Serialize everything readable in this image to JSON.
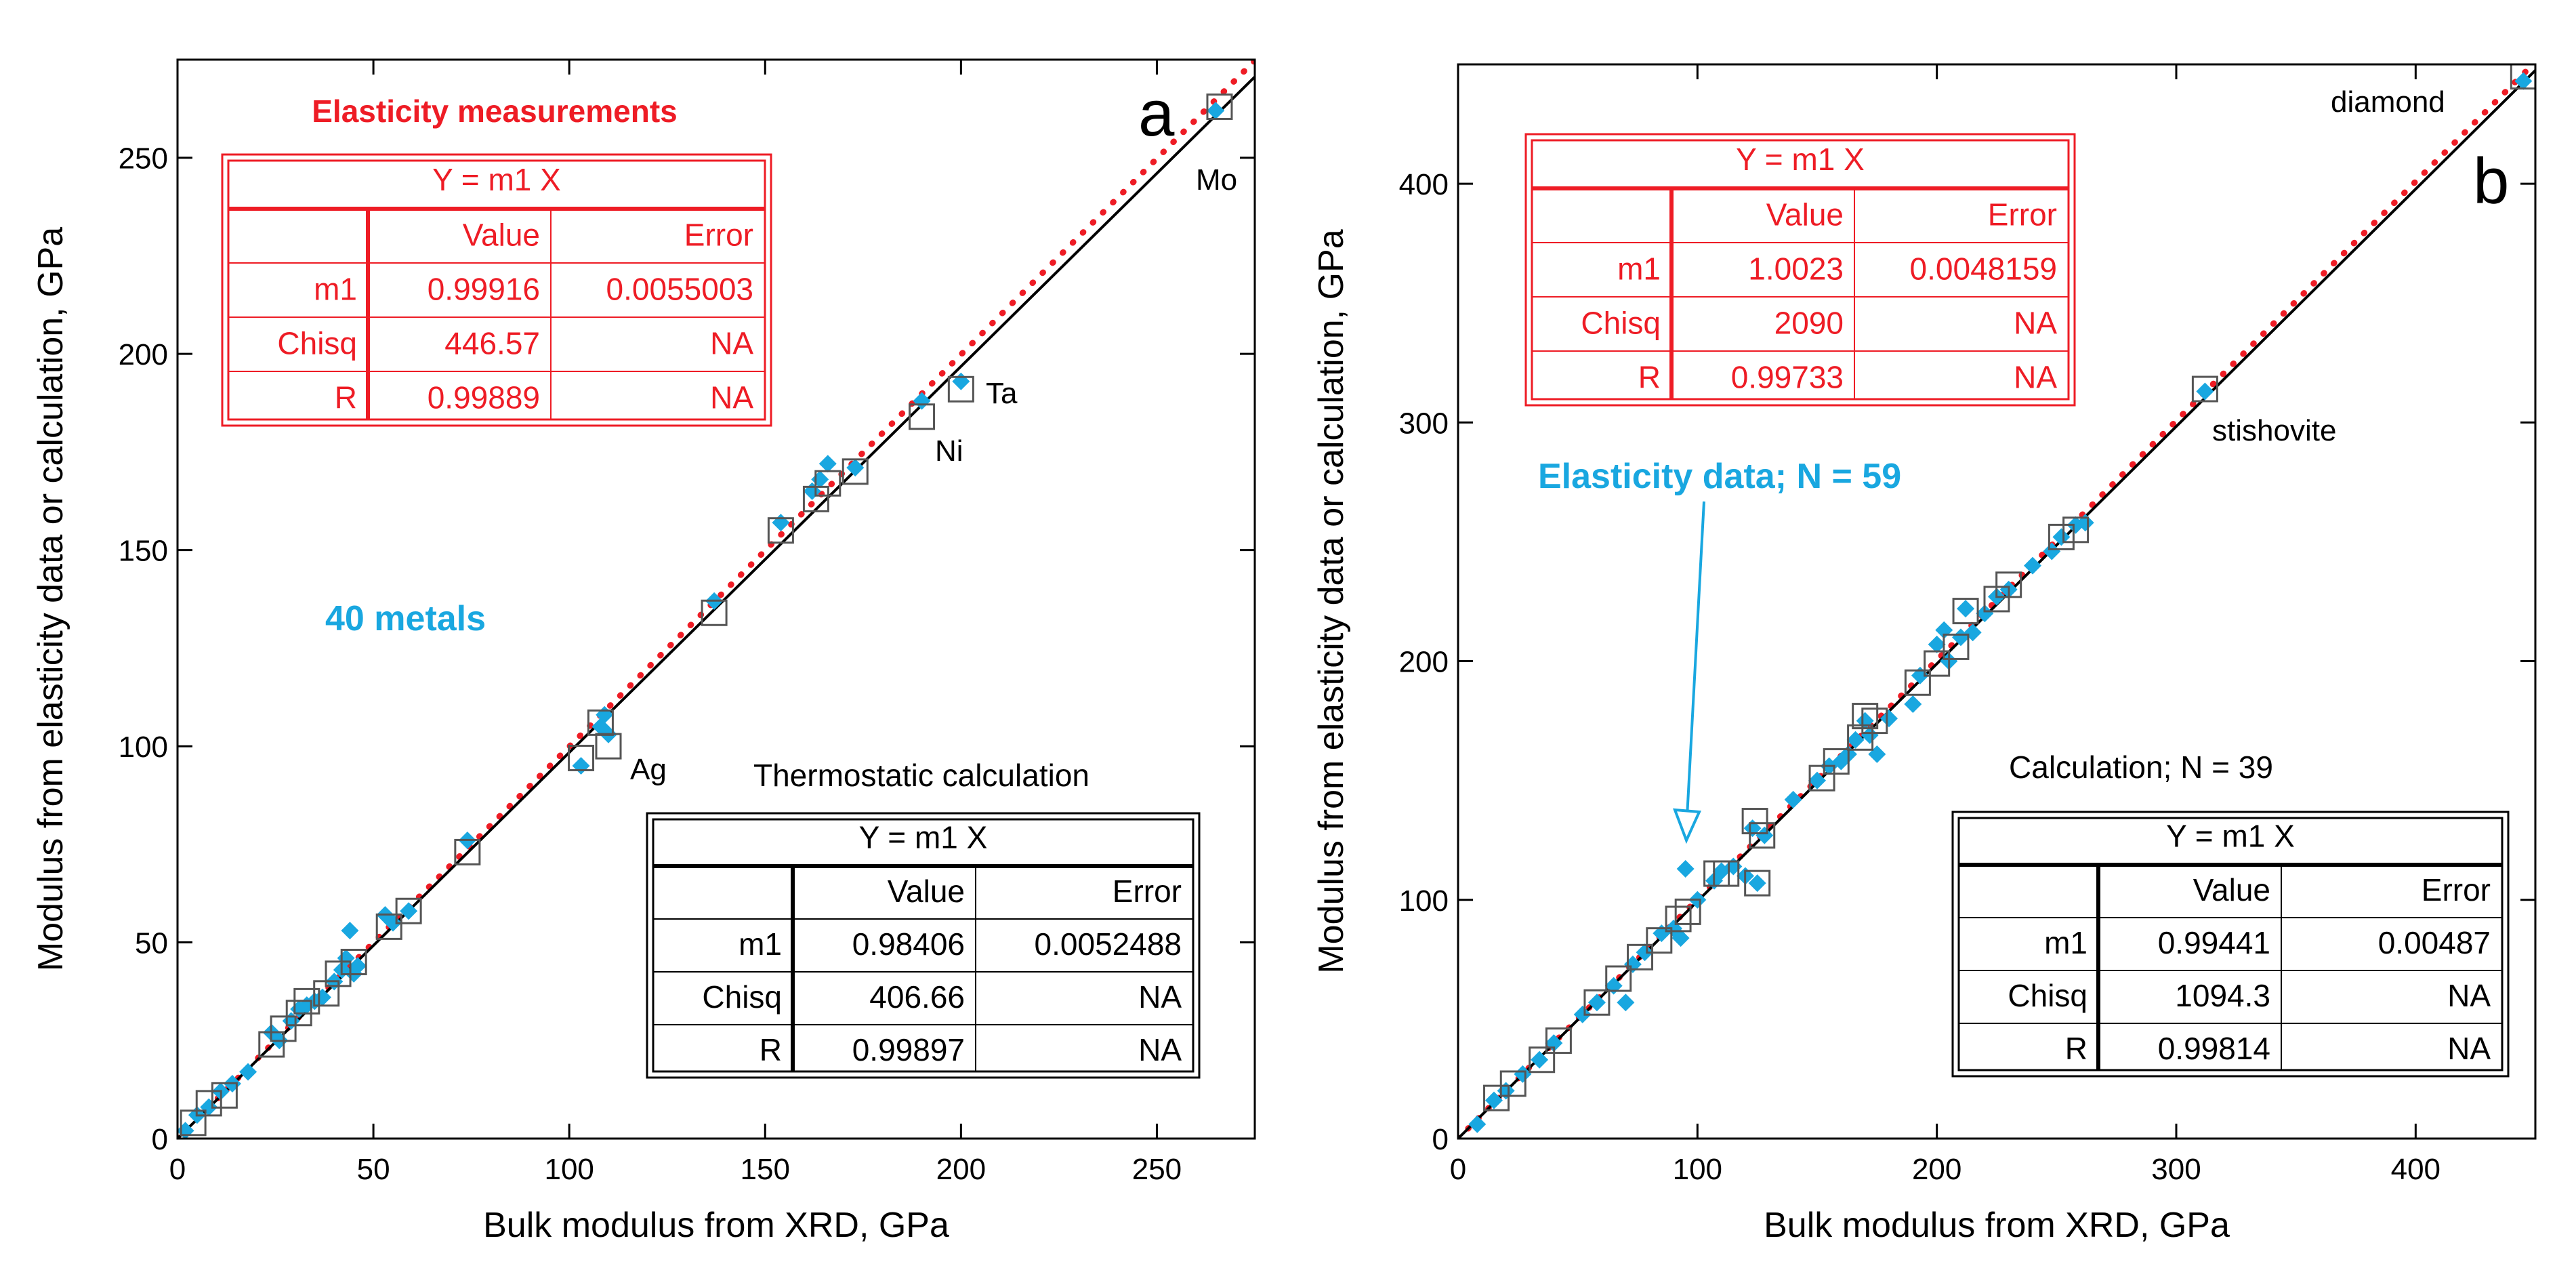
{
  "chart_data": [
    {
      "type": "scatter",
      "panel_letter": "a",
      "xlabel": "Bulk modulus from XRD, GPa",
      "ylabel": "Modulus from elasticity data or calculation, GPa",
      "xlim": [
        0,
        275
      ],
      "ylim": [
        0,
        275
      ],
      "xticks": [
        0,
        50,
        100,
        150,
        200,
        250
      ],
      "yticks": [
        0,
        50,
        100,
        150,
        200,
        250
      ],
      "legend_position": "top-left / bottom-right tables",
      "series": [
        {
          "name": "Elasticity measurements",
          "marker": "diamond",
          "color": "#19a7e0",
          "points": [
            [
              2,
              2
            ],
            [
              5,
              6
            ],
            [
              8,
              8
            ],
            [
              11,
              12
            ],
            [
              14,
              14
            ],
            [
              18,
              17
            ],
            [
              24,
              27
            ],
            [
              26,
              25
            ],
            [
              29,
              30
            ],
            [
              31,
              33
            ],
            [
              33,
              34
            ],
            [
              35,
              35
            ],
            [
              37,
              36
            ],
            [
              40,
              40
            ],
            [
              42,
              43
            ],
            [
              43,
              46
            ],
            [
              44,
              53
            ],
            [
              45,
              42
            ],
            [
              46,
              44
            ],
            [
              53,
              57
            ],
            [
              55,
              55
            ],
            [
              59,
              58
            ],
            [
              74,
              76
            ],
            [
              103,
              95
            ],
            [
              108,
              105
            ],
            [
              109,
              108
            ],
            [
              110,
              103
            ],
            [
              137,
              137
            ],
            [
              154,
              157
            ],
            [
              162,
              165
            ],
            [
              164,
              168
            ],
            [
              166,
              172
            ],
            [
              173,
              171
            ],
            [
              190,
              188
            ],
            [
              200,
              193
            ],
            [
              265,
              262
            ]
          ]
        },
        {
          "name": "Thermostatic calculation",
          "marker": "square",
          "color": "#555555",
          "points": [
            [
              4,
              4
            ],
            [
              8,
              9
            ],
            [
              12,
              11
            ],
            [
              24,
              24
            ],
            [
              27,
              28
            ],
            [
              31,
              32
            ],
            [
              33,
              35
            ],
            [
              38,
              37
            ],
            [
              41,
              42
            ],
            [
              45,
              45
            ],
            [
              54,
              54
            ],
            [
              59,
              58
            ],
            [
              74,
              73
            ],
            [
              103,
              97
            ],
            [
              108,
              106
            ],
            [
              110,
              100
            ],
            [
              137,
              134
            ],
            [
              154,
              155
            ],
            [
              163,
              163
            ],
            [
              166,
              167
            ],
            [
              173,
              170
            ],
            [
              190,
              184
            ],
            [
              200,
              191
            ],
            [
              266,
              263
            ]
          ]
        }
      ],
      "fit_lines": [
        {
          "name": "elasticity fit",
          "style": "dotted",
          "color": "#ee1c25",
          "slope": 0.99916
        },
        {
          "name": "calculation fit",
          "style": "solid",
          "color": "#000000",
          "slope": 0.98406
        }
      ],
      "annotations": [
        {
          "text": "Mo",
          "x": 266,
          "y": 255
        },
        {
          "text": "Ta",
          "x": 206,
          "y": 190
        },
        {
          "text": "Ni",
          "x": 194,
          "y": 175
        },
        {
          "text": "Ag",
          "x": 116,
          "y": 92
        },
        {
          "text": "40 metals",
          "x": 56,
          "y": 130
        }
      ],
      "fit_tables": [
        {
          "title": "Elasticity measurements",
          "equation": "Y = m1 X",
          "header": [
            "",
            "Value",
            "Error"
          ],
          "rows": [
            [
              "m1",
              "0.99916",
              "0.0055003"
            ],
            [
              "Chisq",
              "446.57",
              "NA"
            ],
            [
              "R",
              "0.99889",
              "NA"
            ]
          ]
        },
        {
          "title": "Thermostatic calculation",
          "equation": "Y = m1 X",
          "header": [
            "",
            "Value",
            "Error"
          ],
          "rows": [
            [
              "m1",
              "0.98406",
              "0.0052488"
            ],
            [
              "Chisq",
              "406.66",
              "NA"
            ],
            [
              "R",
              "0.99897",
              "NA"
            ]
          ]
        }
      ]
    },
    {
      "type": "scatter",
      "panel_letter": "b",
      "xlabel": "Bulk modulus from XRD, GPa",
      "ylabel": "Modulus from elasticity data or calculation, GPa",
      "xlim": [
        0,
        450
      ],
      "ylim": [
        0,
        450
      ],
      "xticks": [
        0,
        100,
        200,
        300,
        400
      ],
      "yticks": [
        0,
        100,
        200,
        300,
        400
      ],
      "legend_position": "top-left / bottom-right tables",
      "series": [
        {
          "name": "Elasticity data; N = 59",
          "marker": "diamond",
          "color": "#19a7e0",
          "points": [
            [
              8,
              6
            ],
            [
              15,
              16
            ],
            [
              20,
              20
            ],
            [
              27,
              27
            ],
            [
              34,
              33
            ],
            [
              40,
              40
            ],
            [
              52,
              52
            ],
            [
              58,
              57
            ],
            [
              65,
              64
            ],
            [
              70,
              57
            ],
            [
              73,
              73
            ],
            [
              78,
              78
            ],
            [
              85,
              86
            ],
            [
              90,
              88
            ],
            [
              93,
              84
            ],
            [
              95,
              113
            ],
            [
              100,
              100
            ],
            [
              107,
              108
            ],
            [
              110,
              112
            ],
            [
              115,
              114
            ],
            [
              120,
              110
            ],
            [
              123,
              130
            ],
            [
              125,
              107
            ],
            [
              128,
              127
            ],
            [
              140,
              142
            ],
            [
              150,
              150
            ],
            [
              155,
              156
            ],
            [
              160,
              158
            ],
            [
              163,
              161
            ],
            [
              166,
              167
            ],
            [
              170,
              175
            ],
            [
              172,
              169
            ],
            [
              175,
              161
            ],
            [
              180,
              176
            ],
            [
              190,
              182
            ],
            [
              193,
              194
            ],
            [
              200,
              207
            ],
            [
              203,
              213
            ],
            [
              205,
              200
            ],
            [
              210,
              210
            ],
            [
              212,
              222
            ],
            [
              215,
              212
            ],
            [
              220,
              220
            ],
            [
              225,
              227
            ],
            [
              230,
              230
            ],
            [
              240,
              240
            ],
            [
              248,
              246
            ],
            [
              252,
              252
            ],
            [
              258,
              257
            ],
            [
              262,
              258
            ],
            [
              312,
              313
            ],
            [
              445,
              443
            ]
          ]
        },
        {
          "name": "Calculation; N = 39",
          "marker": "square",
          "color": "#555555",
          "points": [
            [
              16,
              17
            ],
            [
              23,
              23
            ],
            [
              35,
              33
            ],
            [
              42,
              41
            ],
            [
              58,
              57
            ],
            [
              67,
              67
            ],
            [
              76,
              76
            ],
            [
              84,
              83
            ],
            [
              92,
              92
            ],
            [
              96,
              95
            ],
            [
              108,
              111
            ],
            [
              112,
              111
            ],
            [
              124,
              133
            ],
            [
              125,
              107
            ],
            [
              127,
              127
            ],
            [
              152,
              151
            ],
            [
              158,
              158
            ],
            [
              168,
              168
            ],
            [
              170,
              177
            ],
            [
              174,
              175
            ],
            [
              192,
              191
            ],
            [
              200,
              199
            ],
            [
              208,
              206
            ],
            [
              212,
              221
            ],
            [
              225,
              226
            ],
            [
              230,
              232
            ],
            [
              252,
              252
            ],
            [
              258,
              255
            ],
            [
              312,
              314
            ],
            [
              445,
              445
            ]
          ]
        }
      ],
      "fit_lines": [
        {
          "name": "elasticity fit",
          "style": "dotted",
          "color": "#ee1c25",
          "slope": 1.0023
        },
        {
          "name": "calculation fit",
          "style": "solid",
          "color": "#000000",
          "slope": 0.99441
        }
      ],
      "annotations": [
        {
          "text": "diamond",
          "x": 420,
          "y": 440
        },
        {
          "text": "stishovite",
          "x": 335,
          "y": 295
        },
        {
          "text": "Elasticity data; N = 59",
          "x": 130,
          "y": 277
        }
      ],
      "fit_tables": [
        {
          "title": "Elasticity data; N = 59",
          "equation": "Y = m1 X",
          "header": [
            "",
            "Value",
            "Error"
          ],
          "rows": [
            [
              "m1",
              "1.0023",
              "0.0048159"
            ],
            [
              "Chisq",
              "2090",
              "NA"
            ],
            [
              "R",
              "0.99733",
              "NA"
            ]
          ]
        },
        {
          "title": "Calculation; N = 39",
          "equation": "Y = m1 X",
          "header": [
            "",
            "Value",
            "Error"
          ],
          "rows": [
            [
              "m1",
              "0.99441",
              "0.00487"
            ],
            [
              "Chisq",
              "1094.3",
              "NA"
            ],
            [
              "R",
              "0.99814",
              "NA"
            ]
          ]
        }
      ]
    }
  ]
}
